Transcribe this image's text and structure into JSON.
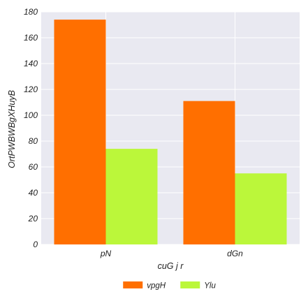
{
  "chart_data": {
    "type": "bar",
    "categories": [
      "pN",
      "dGn"
    ],
    "series": [
      {
        "name": "vpgH",
        "values": [
          174,
          111
        ],
        "color": "#ff6f00"
      },
      {
        "name": "Ylu",
        "values": [
          74,
          55
        ],
        "color": "#bbf73a"
      }
    ],
    "title": "",
    "xlabel": "cuG j r",
    "ylabel": "OrtPWBWBgXHuyB",
    "ylim": [
      0,
      180
    ],
    "yticks": [
      0,
      20,
      40,
      60,
      80,
      100,
      120,
      140,
      160,
      180
    ],
    "grid": true,
    "legend_position": "bottom-center",
    "plot_background": "#e9e9f1",
    "grid_color": "#ffffff"
  }
}
